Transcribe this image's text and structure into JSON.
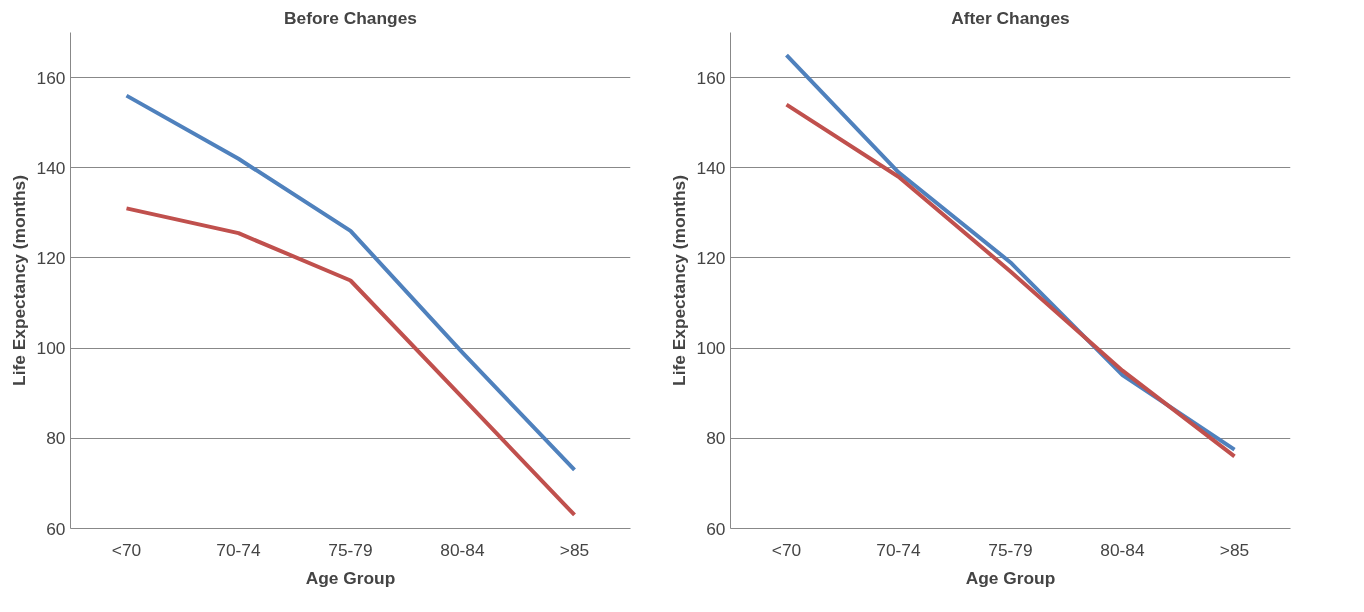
{
  "chart_data": [
    {
      "type": "line",
      "title": "Before Changes",
      "xlabel": "Age Group",
      "ylabel": "Life Expectancy (months)",
      "categories": [
        "<70",
        "70-74",
        "75-79",
        "80-84",
        ">85"
      ],
      "series": [
        {
          "color": "#4f81bd",
          "values": [
            156,
            142,
            126,
            99,
            73
          ]
        },
        {
          "color": "#c0504d",
          "values": [
            131,
            125.5,
            115,
            89,
            63
          ]
        }
      ],
      "ylim": [
        60,
        170
      ],
      "yticks": [
        60,
        80,
        100,
        120,
        140,
        160
      ],
      "grid": "y"
    },
    {
      "type": "line",
      "title": "After Changes",
      "xlabel": "Age Group",
      "ylabel": "Life Expectancy (months)",
      "categories": [
        "<70",
        "70-74",
        "75-79",
        "80-84",
        ">85"
      ],
      "series": [
        {
          "color": "#4f81bd",
          "values": [
            165,
            139,
            119,
            94,
            77.5
          ]
        },
        {
          "color": "#c0504d",
          "values": [
            154,
            138,
            117,
            95,
            76
          ]
        }
      ],
      "ylim": [
        60,
        170
      ],
      "yticks": [
        60,
        80,
        100,
        120,
        140,
        160
      ],
      "grid": "y"
    }
  ]
}
